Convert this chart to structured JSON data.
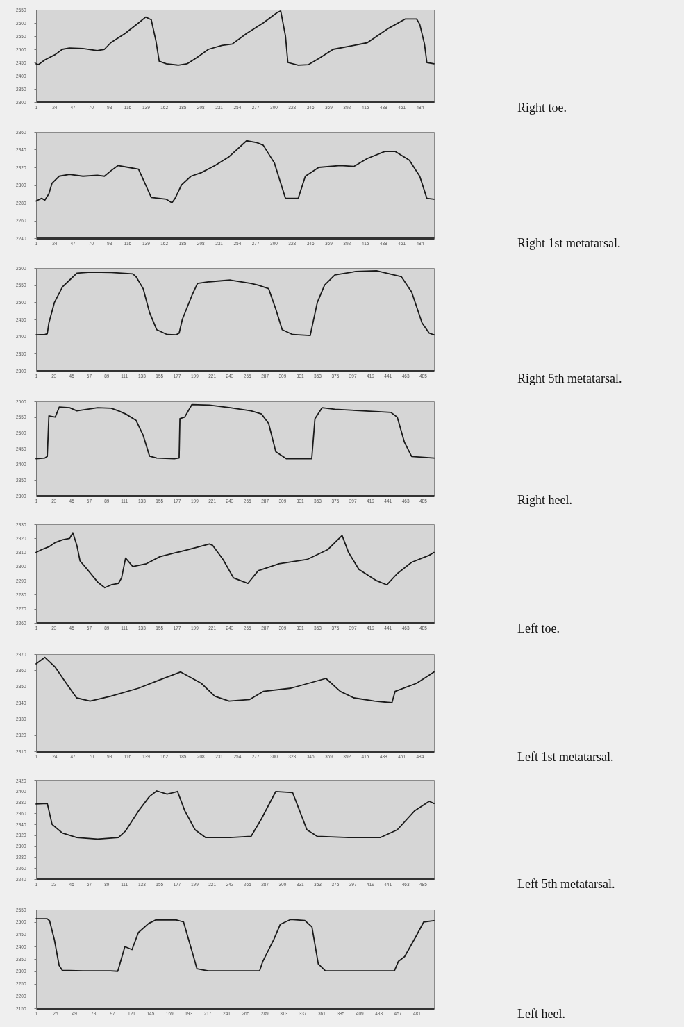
{
  "chart_data": [
    {
      "type": "line",
      "annotations": [
        "Right toe."
      ],
      "color": "#1a1a1a",
      "xlim": [
        1,
        502
      ],
      "xticks": [
        1,
        24,
        47,
        70,
        93,
        116,
        139,
        162,
        185,
        208,
        231,
        254,
        277,
        300,
        323,
        346,
        369,
        392,
        415,
        438,
        461,
        484
      ],
      "ylim": [
        2300,
        2650
      ],
      "yticks": [
        2300,
        2350,
        2400,
        2450,
        2500,
        2550,
        2600,
        2650
      ],
      "x": [
        1,
        4,
        12,
        25,
        34,
        43,
        60,
        78,
        87,
        95,
        113,
        130,
        139,
        146,
        152,
        156,
        165,
        180,
        191,
        204,
        218,
        235,
        248,
        266,
        287,
        305,
        309,
        315,
        318,
        331,
        344,
        357,
        375,
        401,
        418,
        445,
        466,
        480,
        484,
        490,
        493,
        502
      ],
      "values": [
        2445,
        2442,
        2460,
        2480,
        2500,
        2505,
        2503,
        2495,
        2500,
        2525,
        2560,
        2600,
        2622,
        2612,
        2530,
        2455,
        2445,
        2440,
        2445,
        2470,
        2500,
        2515,
        2520,
        2560,
        2600,
        2640,
        2645,
        2550,
        2450,
        2440,
        2442,
        2465,
        2500,
        2515,
        2525,
        2580,
        2615,
        2615,
        2595,
        2520,
        2450,
        2445
      ]
    },
    {
      "type": "line",
      "annotations": [
        "Right 1st metatarsal."
      ],
      "color": "#1a1a1a",
      "xlim": [
        1,
        502
      ],
      "xticks": [
        1,
        24,
        47,
        70,
        93,
        116,
        139,
        162,
        185,
        208,
        231,
        254,
        277,
        300,
        323,
        346,
        369,
        392,
        415,
        438,
        461,
        484
      ],
      "ylim": [
        2240,
        2360
      ],
      "yticks": [
        2240,
        2260,
        2280,
        2300,
        2320,
        2340,
        2360
      ],
      "x": [
        1,
        8,
        12,
        17,
        21,
        30,
        43,
        60,
        78,
        87,
        95,
        104,
        117,
        130,
        139,
        146,
        165,
        172,
        176,
        184,
        196,
        209,
        226,
        244,
        266,
        279,
        287,
        301,
        315,
        331,
        340,
        357,
        384,
        401,
        418,
        440,
        453,
        471,
        484,
        493,
        502
      ],
      "values": [
        2282,
        2285,
        2283,
        2290,
        2302,
        2310,
        2312,
        2310,
        2311,
        2310,
        2316,
        2322,
        2320,
        2318,
        2300,
        2286,
        2284,
        2280,
        2285,
        2300,
        2310,
        2314,
        2322,
        2332,
        2350,
        2348,
        2345,
        2325,
        2285,
        2285,
        2310,
        2320,
        2322,
        2321,
        2330,
        2338,
        2338,
        2328,
        2310,
        2285,
        2284
      ]
    },
    {
      "type": "line",
      "annotations": [
        "Right 5th metatarsal."
      ],
      "color": "#1a1a1a",
      "xlim": [
        1,
        499
      ],
      "xticks": [
        1,
        23,
        45,
        67,
        89,
        111,
        133,
        155,
        177,
        199,
        221,
        243,
        265,
        287,
        309,
        331,
        353,
        375,
        397,
        419,
        441,
        463,
        485
      ],
      "ylim": [
        2300,
        2600
      ],
      "yticks": [
        2300,
        2350,
        2400,
        2450,
        2500,
        2550,
        2600
      ],
      "x": [
        1,
        12,
        15,
        17,
        24,
        34,
        43,
        52,
        69,
        95,
        122,
        126,
        135,
        143,
        152,
        165,
        176,
        180,
        184,
        196,
        203,
        218,
        244,
        270,
        279,
        292,
        301,
        309,
        322,
        344,
        353,
        362,
        375,
        401,
        427,
        458,
        471,
        484,
        493,
        499
      ],
      "values": [
        2405,
        2406,
        2408,
        2440,
        2500,
        2545,
        2565,
        2585,
        2588,
        2587,
        2583,
        2575,
        2540,
        2470,
        2420,
        2406,
        2405,
        2410,
        2450,
        2520,
        2555,
        2560,
        2565,
        2555,
        2550,
        2540,
        2480,
        2420,
        2406,
        2403,
        2500,
        2550,
        2580,
        2590,
        2592,
        2575,
        2530,
        2440,
        2410,
        2405
      ]
    },
    {
      "type": "line",
      "annotations": [
        "Right heel."
      ],
      "color": "#1a1a1a",
      "xlim": [
        1,
        499
      ],
      "xticks": [
        1,
        23,
        45,
        67,
        89,
        111,
        133,
        155,
        177,
        199,
        221,
        243,
        265,
        287,
        309,
        331,
        353,
        375,
        397,
        419,
        441,
        463,
        485
      ],
      "ylim": [
        2300,
        2600
      ],
      "yticks": [
        2300,
        2350,
        2400,
        2450,
        2500,
        2550,
        2600
      ],
      "x": [
        1,
        12,
        15,
        17,
        21,
        25,
        30,
        43,
        52,
        78,
        95,
        104,
        113,
        126,
        135,
        143,
        152,
        174,
        180,
        181,
        187,
        196,
        218,
        244,
        270,
        283,
        292,
        301,
        314,
        346,
        350,
        359,
        375,
        410,
        445,
        453,
        462,
        471,
        499
      ],
      "values": [
        2418,
        2420,
        2425,
        2554,
        2552,
        2550,
        2582,
        2580,
        2570,
        2580,
        2578,
        2570,
        2560,
        2540,
        2492,
        2426,
        2420,
        2418,
        2420,
        2545,
        2550,
        2590,
        2588,
        2580,
        2570,
        2560,
        2530,
        2440,
        2418,
        2418,
        2545,
        2580,
        2575,
        2570,
        2565,
        2550,
        2470,
        2425,
        2420
      ]
    },
    {
      "type": "line",
      "annotations": [
        "Left toe."
      ],
      "color": "#1a1a1a",
      "xlim": [
        1,
        499
      ],
      "xticks": [
        1,
        23,
        45,
        67,
        89,
        111,
        133,
        155,
        177,
        199,
        221,
        243,
        265,
        287,
        309,
        331,
        353,
        375,
        397,
        419,
        441,
        463,
        485
      ],
      "ylim": [
        2260,
        2330
      ],
      "yticks": [
        2260,
        2270,
        2280,
        2290,
        2300,
        2310,
        2320,
        2330
      ],
      "x": [
        1,
        8,
        17,
        25,
        34,
        43,
        47,
        52,
        56,
        65,
        78,
        87,
        95,
        104,
        108,
        113,
        122,
        139,
        156,
        191,
        218,
        222,
        235,
        248,
        266,
        279,
        305,
        340,
        366,
        384,
        392,
        405,
        427,
        440,
        453,
        471,
        493,
        499
      ],
      "values": [
        2310,
        2312,
        2314,
        2317,
        2319,
        2320,
        2324,
        2315,
        2304,
        2298,
        2289,
        2285,
        2287,
        2288,
        2292,
        2306,
        2300,
        2302,
        2307,
        2312,
        2316,
        2315,
        2305,
        2292,
        2288,
        2297,
        2302,
        2305,
        2312,
        2322,
        2310,
        2298,
        2290,
        2287,
        2295,
        2303,
        2308,
        2310
      ]
    },
    {
      "type": "line",
      "annotations": [
        "Left 1st metatarsal."
      ],
      "color": "#1a1a1a",
      "xlim": [
        1,
        502
      ],
      "xticks": [
        1,
        24,
        47,
        70,
        93,
        116,
        139,
        162,
        185,
        208,
        231,
        254,
        277,
        300,
        323,
        346,
        369,
        392,
        415,
        438,
        461,
        484
      ],
      "ylim": [
        2310,
        2370
      ],
      "yticks": [
        2310,
        2320,
        2330,
        2340,
        2350,
        2360,
        2370
      ],
      "x": [
        1,
        12,
        25,
        39,
        52,
        69,
        95,
        130,
        156,
        183,
        209,
        226,
        244,
        270,
        287,
        322,
        366,
        384,
        401,
        427,
        449,
        453,
        480,
        502
      ],
      "values": [
        2364,
        2368,
        2362,
        2352,
        2343,
        2341,
        2344,
        2349,
        2354,
        2359,
        2352,
        2344,
        2341,
        2342,
        2347,
        2349,
        2355,
        2347,
        2343,
        2341,
        2340,
        2347,
        2352,
        2359
      ]
    },
    {
      "type": "line",
      "annotations": [
        "Left 5th metatarsal."
      ],
      "color": "#1a1a1a",
      "xlim": [
        1,
        499
      ],
      "xticks": [
        1,
        23,
        45,
        67,
        89,
        111,
        133,
        155,
        177,
        199,
        221,
        243,
        265,
        287,
        309,
        331,
        353,
        375,
        397,
        419,
        441,
        463,
        485
      ],
      "ylim": [
        2240,
        2420
      ],
      "yticks": [
        2240,
        2260,
        2280,
        2300,
        2320,
        2340,
        2360,
        2380,
        2400,
        2420
      ],
      "x": [
        1,
        15,
        21,
        34,
        52,
        78,
        104,
        113,
        130,
        143,
        152,
        165,
        178,
        187,
        200,
        213,
        244,
        270,
        283,
        301,
        322,
        340,
        353,
        392,
        432,
        453,
        475,
        493,
        499
      ],
      "values": [
        2377,
        2378,
        2340,
        2324,
        2316,
        2313,
        2316,
        2328,
        2366,
        2391,
        2401,
        2395,
        2400,
        2365,
        2330,
        2316,
        2316,
        2318,
        2350,
        2400,
        2398,
        2330,
        2318,
        2316,
        2316,
        2330,
        2365,
        2382,
        2378
      ]
    },
    {
      "type": "line",
      "annotations": [
        "Left heel."
      ],
      "color": "#1a1a1a",
      "xlim": [
        1,
        503
      ],
      "xticks": [
        1,
        25,
        49,
        73,
        97,
        121,
        145,
        169,
        193,
        217,
        241,
        265,
        289,
        313,
        337,
        361,
        385,
        409,
        433,
        457,
        481
      ],
      "ylim": [
        2150,
        2550
      ],
      "yticks": [
        2150,
        2200,
        2250,
        2300,
        2350,
        2400,
        2450,
        2500,
        2550
      ],
      "x": [
        1,
        15,
        18,
        24,
        30,
        34,
        60,
        95,
        104,
        113,
        122,
        130,
        143,
        152,
        178,
        187,
        196,
        204,
        218,
        283,
        287,
        301,
        309,
        322,
        340,
        349,
        357,
        366,
        453,
        458,
        466,
        480,
        490,
        503
      ],
      "values": [
        2513,
        2513,
        2505,
        2429,
        2324,
        2304,
        2302,
        2302,
        2300,
        2400,
        2388,
        2457,
        2494,
        2508,
        2508,
        2500,
        2400,
        2310,
        2302,
        2302,
        2340,
        2430,
        2490,
        2510,
        2506,
        2480,
        2330,
        2302,
        2302,
        2340,
        2360,
        2440,
        2500,
        2505
      ]
    }
  ]
}
